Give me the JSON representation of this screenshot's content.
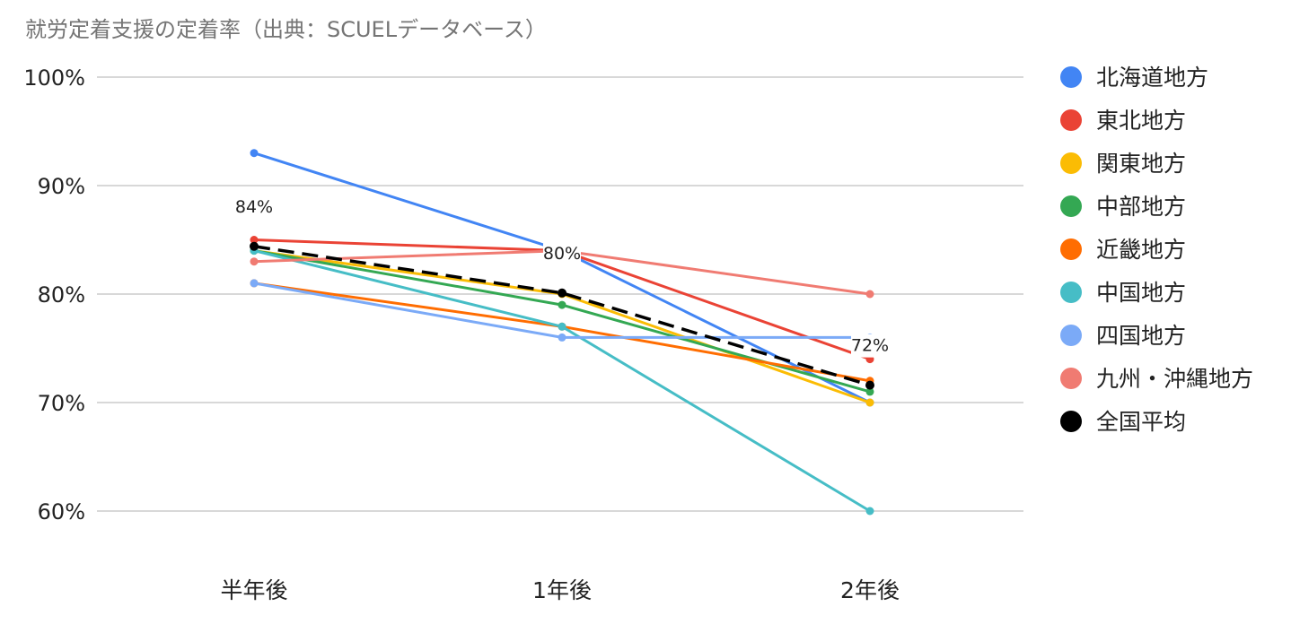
{
  "chart_data": {
    "type": "line",
    "title": "就労定着支援の定着率（出典：SCUELデータベース）",
    "xlabel": "",
    "ylabel": "",
    "categories": [
      "半年後",
      "1年後",
      "2年後"
    ],
    "y_ticks": [
      "60%",
      "70%",
      "80%",
      "90%",
      "100%"
    ],
    "ylim": [
      60,
      100
    ],
    "grid": true,
    "legend_position": "right",
    "series": [
      {
        "name": "北海道地方",
        "values": [
          93,
          84,
          70
        ],
        "color": "#4285F4"
      },
      {
        "name": "東北地方",
        "values": [
          85,
          84,
          74
        ],
        "color": "#EA4335"
      },
      {
        "name": "関東地方",
        "values": [
          84,
          80,
          70
        ],
        "color": "#FBBC04"
      },
      {
        "name": "中部地方",
        "values": [
          84,
          79,
          71
        ],
        "color": "#34A853"
      },
      {
        "name": "近畿地方",
        "values": [
          81,
          77,
          72
        ],
        "color": "#FF6D01"
      },
      {
        "name": "中国地方",
        "values": [
          84,
          77,
          60
        ],
        "color": "#46BDC6"
      },
      {
        "name": "四国地方",
        "values": [
          81,
          76,
          76
        ],
        "color": "#7BAAF7"
      },
      {
        "name": "九州・沖縄地方",
        "values": [
          83,
          84,
          80
        ],
        "color": "#F07B72"
      },
      {
        "name": "全国平均",
        "values": [
          84.4,
          80.1,
          71.6
        ],
        "color": "#000000",
        "dashed": true
      }
    ],
    "data_labels": [
      {
        "series": "全国平均",
        "index": 0,
        "text": "84%"
      },
      {
        "series": "全国平均",
        "index": 1,
        "text": "80%"
      },
      {
        "series": "全国平均",
        "index": 2,
        "text": "72%"
      }
    ]
  }
}
